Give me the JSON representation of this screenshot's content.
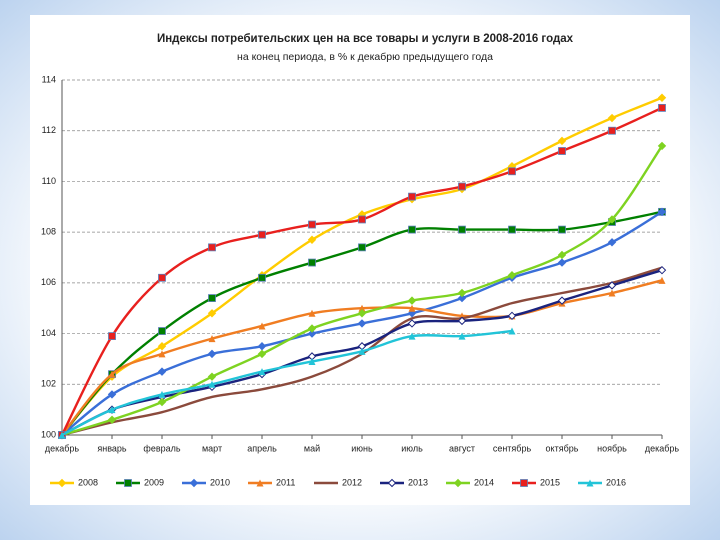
{
  "chart_data": {
    "type": "line",
    "title": "Индексы потребительских цен на все товары и услуги в 2008-2016 годах",
    "subtitle": "на конец периода, в % к декабрю предыдущего года",
    "categories": [
      "декабрь",
      "январь",
      "февраль",
      "март",
      "апрель",
      "май",
      "июнь",
      "июль",
      "август",
      "сентябрь",
      "октябрь",
      "ноябрь",
      "декабрь"
    ],
    "ylim": [
      100,
      114
    ],
    "yticks": [
      100,
      102,
      104,
      106,
      108,
      110,
      112,
      114
    ],
    "grid": true,
    "legend": "bottom",
    "series": [
      {
        "name": "2008",
        "color": "#ffcc00",
        "marker": "diamond",
        "values": [
          100,
          102.3,
          103.5,
          104.8,
          106.3,
          107.7,
          108.7,
          109.3,
          109.7,
          110.6,
          111.6,
          112.5,
          113.3
        ]
      },
      {
        "name": "2009",
        "color": "#008000",
        "marker": "square",
        "values": [
          100,
          102.4,
          104.1,
          105.4,
          106.2,
          106.8,
          107.4,
          108.1,
          108.1,
          108.1,
          108.1,
          108.4,
          108.8
        ]
      },
      {
        "name": "2010",
        "color": "#3a6fd8",
        "marker": "diamond",
        "values": [
          100,
          101.6,
          102.5,
          103.2,
          103.5,
          104.0,
          104.4,
          104.8,
          105.4,
          106.2,
          106.8,
          107.6,
          108.8
        ]
      },
      {
        "name": "2011",
        "color": "#f07d22",
        "marker": "triangle",
        "values": [
          100,
          102.4,
          103.2,
          103.8,
          104.3,
          104.8,
          105.0,
          105.0,
          104.7,
          104.7,
          105.2,
          105.6,
          106.1
        ]
      },
      {
        "name": "2012",
        "color": "#8b4a3c",
        "marker": "none",
        "values": [
          100,
          100.5,
          100.9,
          101.5,
          101.8,
          102.3,
          103.2,
          104.6,
          104.6,
          105.2,
          105.6,
          106.0,
          106.6
        ]
      },
      {
        "name": "2013",
        "color": "#1a237e",
        "marker": "diamond-open",
        "values": [
          100,
          101.0,
          101.5,
          101.9,
          102.4,
          103.1,
          103.5,
          104.4,
          104.5,
          104.7,
          105.3,
          105.9,
          106.5
        ]
      },
      {
        "name": "2014",
        "color": "#7ed321",
        "marker": "diamond",
        "values": [
          100,
          100.6,
          101.3,
          102.3,
          103.2,
          104.2,
          104.8,
          105.3,
          105.6,
          106.3,
          107.1,
          108.5,
          111.4
        ]
      },
      {
        "name": "2015",
        "color": "#e8201e",
        "marker": "square",
        "values": [
          100,
          103.9,
          106.2,
          107.4,
          107.9,
          108.3,
          108.5,
          109.4,
          109.8,
          110.4,
          111.2,
          112.0,
          112.9
        ]
      },
      {
        "name": "2016",
        "color": "#22c4d8",
        "marker": "triangle",
        "values": [
          100,
          101.0,
          101.6,
          102.0,
          102.5,
          102.9,
          103.3,
          103.9,
          103.9,
          104.1,
          null,
          null,
          null
        ]
      }
    ]
  }
}
